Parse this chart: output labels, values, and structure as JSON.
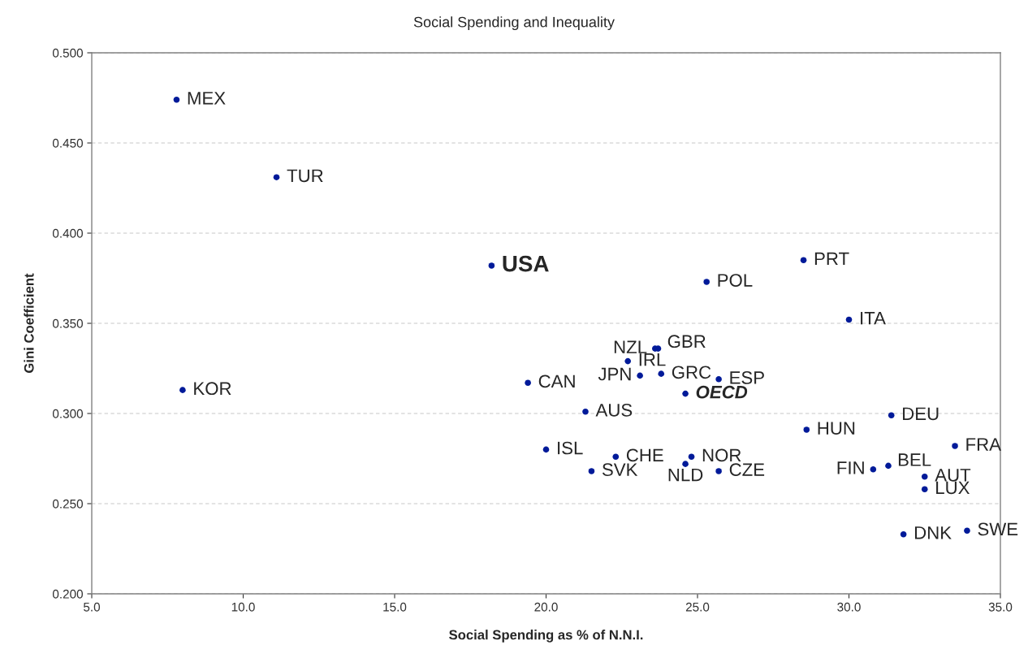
{
  "chart_data": {
    "type": "scatter",
    "title": "Social Spending and Inequality",
    "xlabel": "Social Spending as % of N.N.I.",
    "ylabel": "Gini Coefficient",
    "x": [
      7.8,
      11.1,
      18.2,
      8.0,
      19.4,
      21.3,
      20.0,
      21.5,
      22.3,
      22.7,
      23.1,
      23.6,
      23.7,
      23.8,
      25.7,
      24.6,
      24.8,
      24.6,
      25.7,
      25.3,
      28.5,
      30.0,
      28.6,
      31.4,
      33.5,
      30.8,
      31.3,
      32.5,
      32.5,
      31.8,
      33.9
    ],
    "series": [
      {
        "color": "#001a99",
        "values": [
          0.474,
          0.431,
          0.382,
          0.313,
          0.317,
          0.301,
          0.28,
          0.268,
          0.276,
          0.329,
          0.321,
          0.336,
          0.336,
          0.322,
          0.319,
          0.311,
          0.276,
          0.272,
          0.268,
          0.373,
          0.385,
          0.352,
          0.291,
          0.299,
          0.282,
          0.269,
          0.271,
          0.265,
          0.258,
          0.233,
          0.235
        ]
      }
    ],
    "annotations": [
      {
        "text": "MEX",
        "x": 7.8,
        "y": 0.474
      },
      {
        "text": "TUR",
        "x": 11.1,
        "y": 0.431
      },
      {
        "text": "USA",
        "x": 18.2,
        "y": 0.382
      },
      {
        "text": "KOR",
        "x": 8.0,
        "y": 0.313
      },
      {
        "text": "CAN",
        "x": 19.4,
        "y": 0.317
      },
      {
        "text": "AUS",
        "x": 21.3,
        "y": 0.301
      },
      {
        "text": "ISL",
        "x": 20.0,
        "y": 0.28
      },
      {
        "text": "SVK",
        "x": 21.5,
        "y": 0.268
      },
      {
        "text": "CHE",
        "x": 22.3,
        "y": 0.276
      },
      {
        "text": "IRL",
        "x": 22.7,
        "y": 0.329
      },
      {
        "text": "JPN",
        "x": 23.1,
        "y": 0.321
      },
      {
        "text": "NZL",
        "x": 23.6,
        "y": 0.336
      },
      {
        "text": "GBR",
        "x": 23.7,
        "y": 0.336
      },
      {
        "text": "GRC",
        "x": 23.8,
        "y": 0.322
      },
      {
        "text": "ESP",
        "x": 25.7,
        "y": 0.319
      },
      {
        "text": "OECD",
        "x": 24.6,
        "y": 0.311
      },
      {
        "text": "NOR",
        "x": 24.8,
        "y": 0.276
      },
      {
        "text": "NLD",
        "x": 24.6,
        "y": 0.272
      },
      {
        "text": "CZE",
        "x": 25.7,
        "y": 0.268
      },
      {
        "text": "POL",
        "x": 25.3,
        "y": 0.373
      },
      {
        "text": "PRT",
        "x": 28.5,
        "y": 0.385
      },
      {
        "text": "ITA",
        "x": 30.0,
        "y": 0.352
      },
      {
        "text": "HUN",
        "x": 28.6,
        "y": 0.291
      },
      {
        "text": "DEU",
        "x": 31.4,
        "y": 0.299
      },
      {
        "text": "FRA",
        "x": 33.5,
        "y": 0.282
      },
      {
        "text": "FIN",
        "x": 30.8,
        "y": 0.269
      },
      {
        "text": "BEL",
        "x": 31.3,
        "y": 0.271
      },
      {
        "text": "AUT",
        "x": 32.5,
        "y": 0.265
      },
      {
        "text": "LUX",
        "x": 32.5,
        "y": 0.258
      },
      {
        "text": "DNK",
        "x": 31.8,
        "y": 0.233
      },
      {
        "text": "SWE",
        "x": 33.9,
        "y": 0.235
      }
    ],
    "xlim": [
      5.0,
      35.0
    ],
    "xticks": [
      {
        "value": 5,
        "label": "5.0"
      },
      {
        "value": 10,
        "label": "10.0"
      },
      {
        "value": 15,
        "label": "15.0"
      },
      {
        "value": 20,
        "label": "20.0"
      },
      {
        "value": 25,
        "label": "25.0"
      },
      {
        "value": 30,
        "label": "30.0"
      },
      {
        "value": 35,
        "label": "35.0"
      }
    ],
    "ylim": [
      0.2,
      0.5
    ],
    "yticks": [
      {
        "value": 0.2,
        "label": "0.200"
      },
      {
        "value": 0.25,
        "label": "0.250"
      },
      {
        "value": 0.3,
        "label": "0.300"
      },
      {
        "value": 0.35,
        "label": "0.350"
      },
      {
        "value": 0.4,
        "label": "0.400"
      },
      {
        "value": 0.45,
        "label": "0.450"
      },
      {
        "value": 0.5,
        "label": "0.500"
      }
    ],
    "grid": "y",
    "marker": "circle"
  }
}
